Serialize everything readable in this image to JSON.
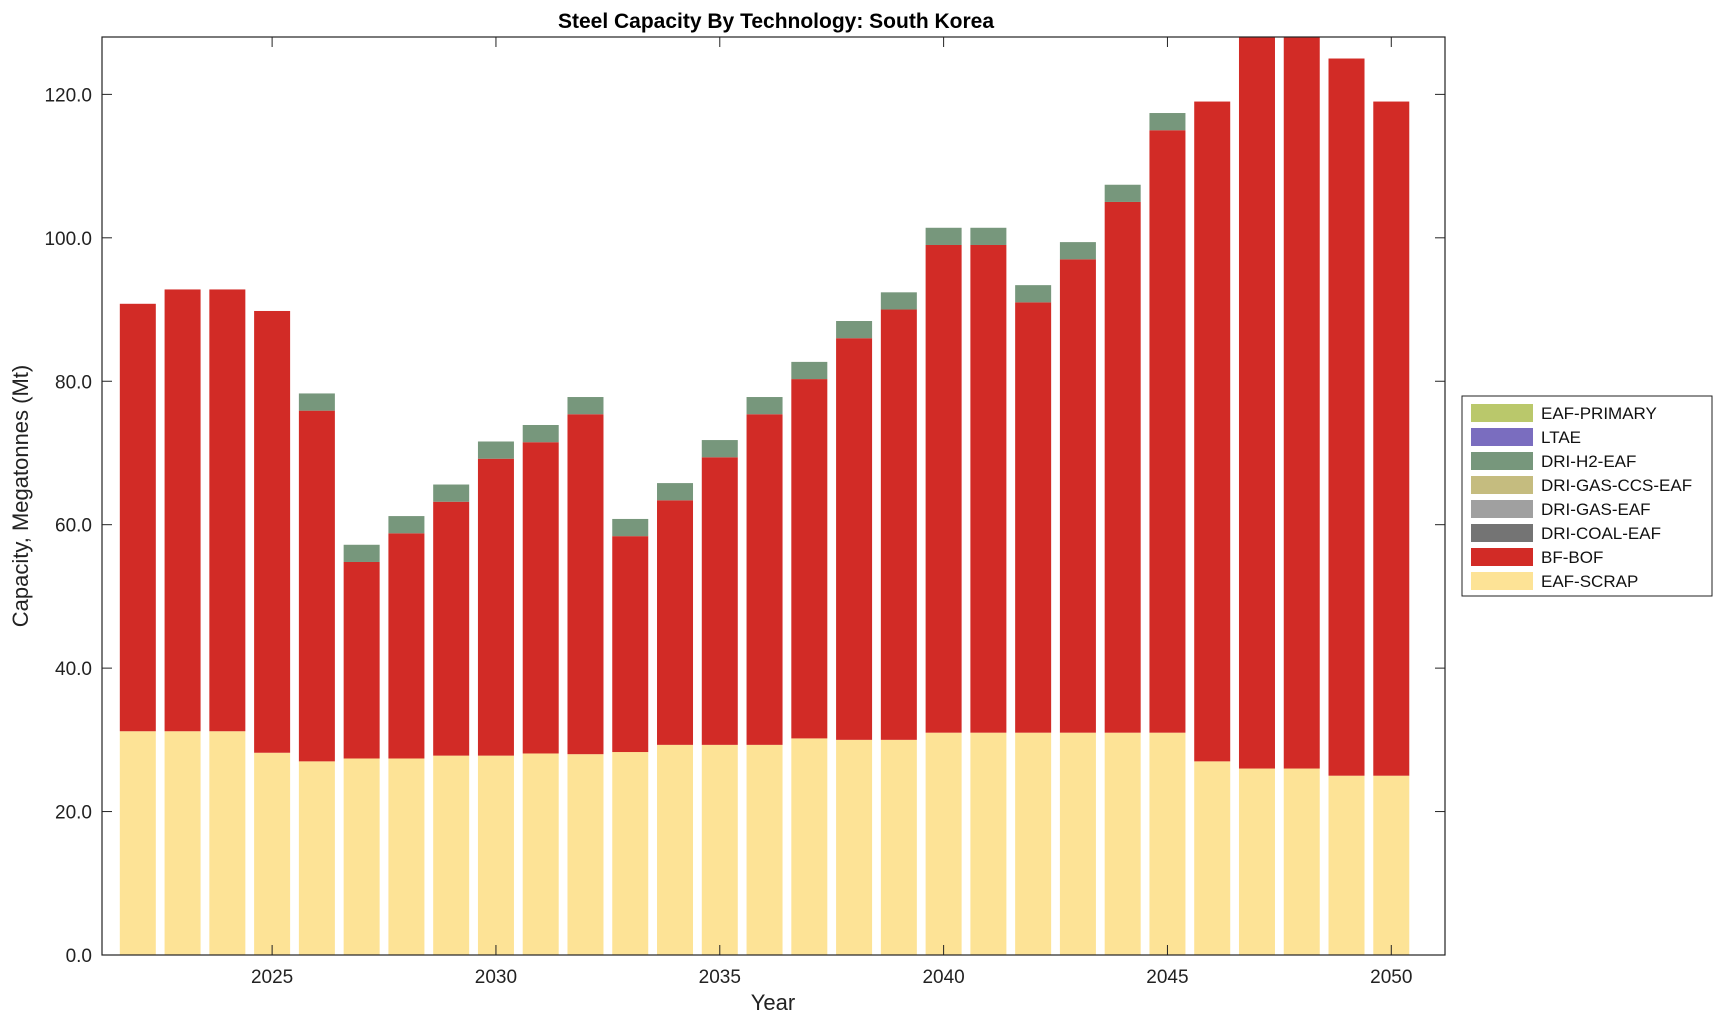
{
  "chart_data": {
    "type": "bar",
    "stacked": true,
    "title": "Steel Capacity By Technology: South Korea",
    "xlabel": "Year",
    "ylabel": "Capacity, Megatonnes (Mt)",
    "ylim": [
      0,
      128
    ],
    "yticks": [
      "0.0",
      "20.0",
      "40.0",
      "60.0",
      "80.0",
      "100.0",
      "120.0"
    ],
    "xticks": [
      "2025",
      "2030",
      "2035",
      "2040",
      "2045",
      "2050"
    ],
    "categories": [
      "2022",
      "2023",
      "2024",
      "2025",
      "2026",
      "2027",
      "2028",
      "2029",
      "2030",
      "2031",
      "2032",
      "2033",
      "2034",
      "2035",
      "2036",
      "2037",
      "2038",
      "2039",
      "2040",
      "2041",
      "2042",
      "2043",
      "2044",
      "2045",
      "2046",
      "2047",
      "2048",
      "2049",
      "2050"
    ],
    "grid": false,
    "legend_position": "right",
    "legend": [
      "EAF-PRIMARY",
      "LTAE",
      "DRI-H2-EAF",
      "DRI-GAS-CCS-EAF",
      "DRI-GAS-EAF",
      "DRI-COAL-EAF",
      "BF-BOF",
      "EAF-SCRAP"
    ],
    "series": [
      {
        "name": "EAF-SCRAP",
        "color": "#fde396",
        "values": [
          31.2,
          31.2,
          31.2,
          28.2,
          27.0,
          27.4,
          27.4,
          27.8,
          27.8,
          28.1,
          28.0,
          28.3,
          29.3,
          29.3,
          29.3,
          30.2,
          30.0,
          30.0,
          31.0,
          31.0,
          31.0,
          31.0,
          31.0,
          31.0,
          27.0,
          26.0,
          26.0,
          25.0,
          25.0
        ]
      },
      {
        "name": "DRI-COAL-EAF",
        "color": "#747474",
        "values": [
          0,
          0,
          0,
          0,
          0,
          0,
          0,
          0,
          0,
          0,
          0,
          0,
          0,
          0,
          0,
          0,
          0,
          0,
          0,
          0,
          0,
          0,
          0,
          0,
          0,
          0,
          0,
          0,
          0
        ]
      },
      {
        "name": "DRI-GAS-EAF",
        "color": "#a0a0a0",
        "values": [
          0,
          0,
          0,
          0,
          0,
          0,
          0,
          0,
          0,
          0,
          0,
          0,
          0,
          0,
          0,
          0,
          0,
          0,
          0,
          0,
          0,
          0,
          0,
          0,
          0,
          0,
          0,
          0,
          0
        ]
      },
      {
        "name": "DRI-GAS-CCS-EAF",
        "color": "#c5bc7f",
        "values": [
          0,
          0,
          0,
          0,
          0,
          0,
          0,
          0,
          0,
          0,
          0,
          0,
          0,
          0,
          0,
          0,
          0,
          0,
          0,
          0,
          0,
          0,
          0,
          0,
          0,
          0,
          0,
          0,
          0
        ]
      },
      {
        "name": "BF-BOF",
        "color": "#d22b26",
        "values": [
          59.6,
          61.6,
          61.6,
          61.6,
          48.9,
          27.4,
          31.4,
          35.4,
          41.4,
          43.4,
          47.4,
          30.1,
          34.1,
          40.1,
          46.1,
          50.1,
          56.0,
          60.0,
          68.0,
          68.0,
          60.0,
          66.0,
          74.0,
          84.0,
          92.0,
          102.0,
          102.0,
          100.0,
          94.0
        ]
      },
      {
        "name": "DRI-H2-EAF",
        "color": "#77977c",
        "values": [
          0,
          0,
          0,
          0,
          2.4,
          2.4,
          2.4,
          2.4,
          2.4,
          2.4,
          2.4,
          2.4,
          2.4,
          2.4,
          2.4,
          2.4,
          2.4,
          2.4,
          2.4,
          2.4,
          2.4,
          2.4,
          2.4,
          2.4,
          0,
          0,
          0,
          0,
          0
        ]
      },
      {
        "name": "LTAE",
        "color": "#7a6dbf",
        "values": [
          0,
          0,
          0,
          0,
          0,
          0,
          0,
          0,
          0,
          0,
          0,
          0,
          0,
          0,
          0,
          0,
          0,
          0,
          0,
          0,
          0,
          0,
          0,
          0,
          0,
          0,
          0,
          0,
          0
        ]
      },
      {
        "name": "EAF-PRIMARY",
        "color": "#bac86b",
        "values": [
          0,
          0,
          0,
          0,
          0,
          0,
          0,
          0,
          0,
          0,
          0,
          0,
          0,
          0,
          0,
          0,
          0,
          0,
          0,
          0,
          0,
          0,
          0,
          0,
          0,
          0,
          0,
          0,
          0
        ]
      }
    ]
  }
}
